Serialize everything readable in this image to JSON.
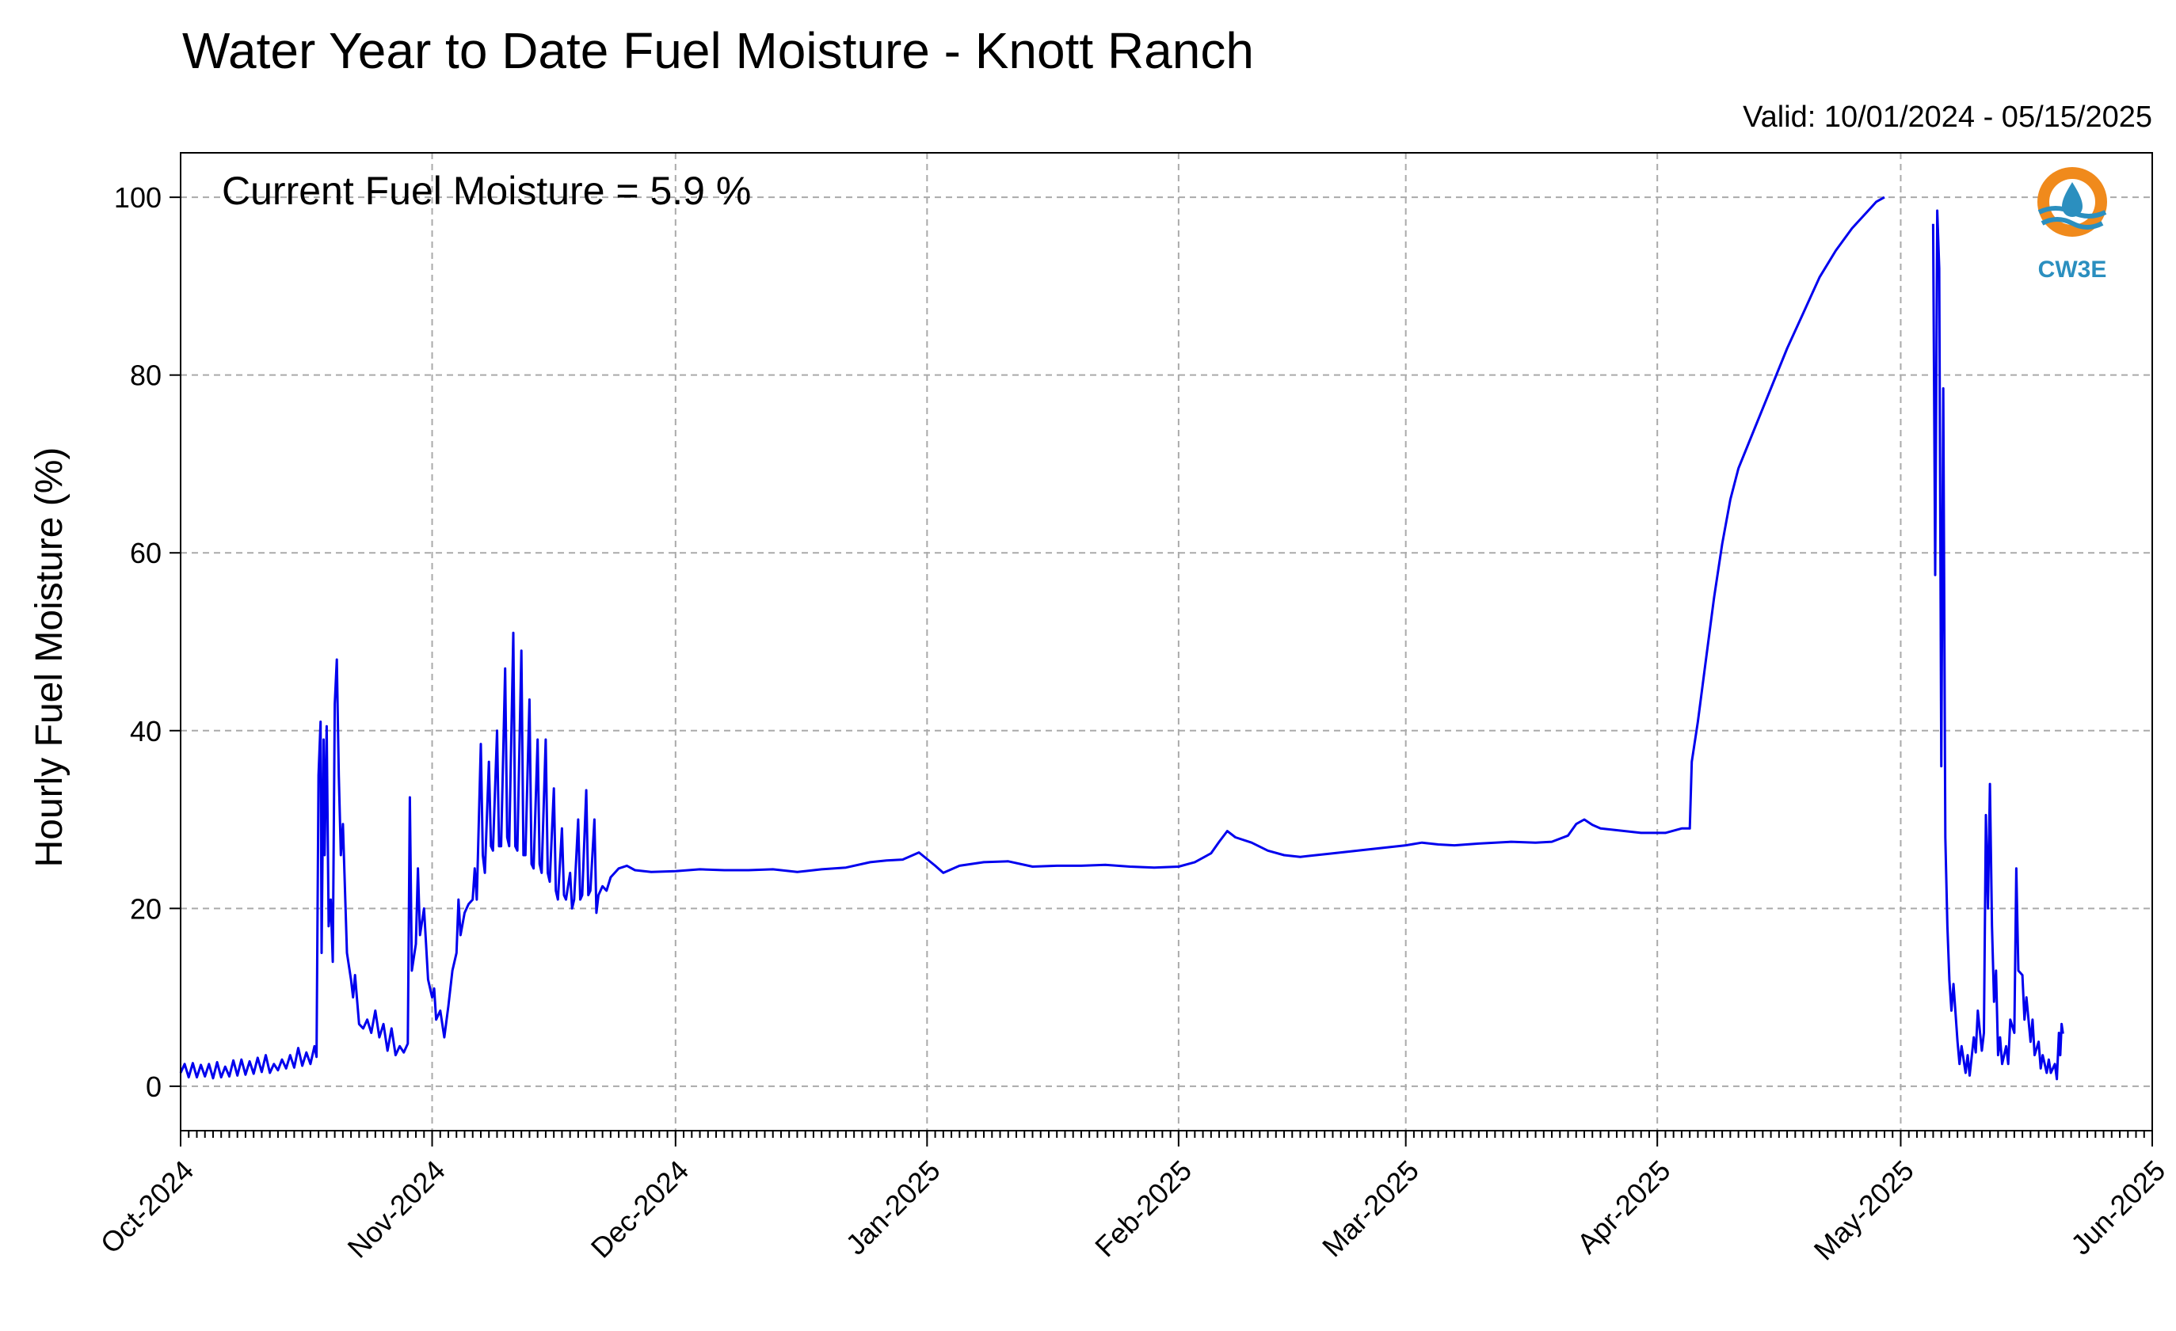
{
  "chart_data": {
    "type": "line",
    "title": "Water Year to Date Fuel Moisture - Knott Ranch",
    "subtitle": "Valid: 10/01/2024 - 05/15/2025",
    "annotation": "Current Fuel Moisture = 5.9 %",
    "xlabel": "",
    "ylabel": "Hourly Fuel Moisture (%)",
    "xlim": [
      "2024-10-01",
      "2025-06-01"
    ],
    "ylim": [
      -5,
      105
    ],
    "grid": true,
    "x_ticks": [
      "Oct-2024",
      "Nov-2024",
      "Dec-2024",
      "Jan-2025",
      "Feb-2025",
      "Mar-2025",
      "Apr-2025",
      "May-2025",
      "Jun-2025"
    ],
    "x_tick_dates": [
      "2024-10-01",
      "2024-11-01",
      "2024-12-01",
      "2025-01-01",
      "2025-02-01",
      "2025-03-01",
      "2025-04-01",
      "2025-05-01",
      "2025-06-01"
    ],
    "y_ticks": [
      0,
      20,
      40,
      60,
      80,
      100
    ],
    "series": [
      {
        "color": "#0000ee",
        "points": [
          [
            "2024-10-01",
            1.5
          ],
          [
            "2024-10-01 12:00",
            2.5
          ],
          [
            "2024-10-02",
            1
          ],
          [
            "2024-10-02 12:00",
            2.6
          ],
          [
            "2024-10-03",
            1
          ],
          [
            "2024-10-03 12:00",
            2.4
          ],
          [
            "2024-10-04",
            1.1
          ],
          [
            "2024-10-04 12:00",
            2.5
          ],
          [
            "2024-10-05",
            0.9
          ],
          [
            "2024-10-05 12:00",
            2.7
          ],
          [
            "2024-10-06",
            1
          ],
          [
            "2024-10-06 12:00",
            2.2
          ],
          [
            "2024-10-07",
            1.1
          ],
          [
            "2024-10-07 12:00",
            2.9
          ],
          [
            "2024-10-08",
            1.2
          ],
          [
            "2024-10-08 12:00",
            3
          ],
          [
            "2024-10-09",
            1.3
          ],
          [
            "2024-10-09 12:00",
            2.8
          ],
          [
            "2024-10-10",
            1.4
          ],
          [
            "2024-10-10 12:00",
            3.2
          ],
          [
            "2024-10-11",
            1.6
          ],
          [
            "2024-10-11 12:00",
            3.5
          ],
          [
            "2024-10-12",
            1.5
          ],
          [
            "2024-10-12 12:00",
            2.5
          ],
          [
            "2024-10-13",
            1.8
          ],
          [
            "2024-10-13 12:00",
            3
          ],
          [
            "2024-10-14",
            2
          ],
          [
            "2024-10-14 12:00",
            3.5
          ],
          [
            "2024-10-15",
            2.1
          ],
          [
            "2024-10-15 12:00",
            4.3
          ],
          [
            "2024-10-16",
            2.3
          ],
          [
            "2024-10-16 12:00",
            3.8
          ],
          [
            "2024-10-17",
            2.5
          ],
          [
            "2024-10-17 12:00",
            4.5
          ],
          [
            "2024-10-17 18:00",
            3.3
          ],
          [
            "2024-10-18",
            35
          ],
          [
            "2024-10-18 06:00",
            41
          ],
          [
            "2024-10-18 09:00",
            15
          ],
          [
            "2024-10-18 15:00",
            39
          ],
          [
            "2024-10-18 18:00",
            26
          ],
          [
            "2024-10-19",
            40.5
          ],
          [
            "2024-10-19 06:00",
            18
          ],
          [
            "2024-10-19 12:00",
            21
          ],
          [
            "2024-10-19 18:00",
            14
          ],
          [
            "2024-10-20",
            43
          ],
          [
            "2024-10-20 06:00",
            48
          ],
          [
            "2024-10-20 12:00",
            35
          ],
          [
            "2024-10-20 18:00",
            26
          ],
          [
            "2024-10-21",
            29.5
          ],
          [
            "2024-10-21 12:00",
            15
          ],
          [
            "2024-10-22",
            12
          ],
          [
            "2024-10-22 06:00",
            10
          ],
          [
            "2024-10-22 12:00",
            12.5
          ],
          [
            "2024-10-23",
            7
          ],
          [
            "2024-10-23 12:00",
            6.5
          ],
          [
            "2024-10-24",
            7.5
          ],
          [
            "2024-10-24 12:00",
            6
          ],
          [
            "2024-10-25",
            8.5
          ],
          [
            "2024-10-25 12:00",
            5.5
          ],
          [
            "2024-10-26",
            7
          ],
          [
            "2024-10-26 12:00",
            4
          ],
          [
            "2024-10-27",
            6.5
          ],
          [
            "2024-10-27 12:00",
            3.5
          ],
          [
            "2024-10-28",
            4.5
          ],
          [
            "2024-10-28 12:00",
            3.8
          ],
          [
            "2024-10-29",
            4.8
          ],
          [
            "2024-10-29 06:00",
            32.5
          ],
          [
            "2024-10-29 12:00",
            13
          ],
          [
            "2024-10-30",
            16
          ],
          [
            "2024-10-30 06:00",
            24.5
          ],
          [
            "2024-10-30 12:00",
            17
          ],
          [
            "2024-10-31",
            20
          ],
          [
            "2024-10-31 12:00",
            12
          ],
          [
            "2024-11-01",
            10
          ],
          [
            "2024-11-01 06:00",
            11
          ],
          [
            "2024-11-01 12:00",
            7.5
          ],
          [
            "2024-11-02",
            8.5
          ],
          [
            "2024-11-02 12:00",
            5.5
          ],
          [
            "2024-11-03",
            9
          ],
          [
            "2024-11-03 12:00",
            13
          ],
          [
            "2024-11-04",
            15
          ],
          [
            "2024-11-04 06:00",
            21
          ],
          [
            "2024-11-04 12:00",
            17
          ],
          [
            "2024-11-05",
            19.5
          ],
          [
            "2024-11-05 12:00",
            20.5
          ],
          [
            "2024-11-06",
            21
          ],
          [
            "2024-11-06 06:00",
            24.5
          ],
          [
            "2024-11-06 12:00",
            21
          ],
          [
            "2024-11-07",
            38.5
          ],
          [
            "2024-11-07 06:00",
            26
          ],
          [
            "2024-11-07 12:00",
            24
          ],
          [
            "2024-11-08",
            36.5
          ],
          [
            "2024-11-08 06:00",
            27
          ],
          [
            "2024-11-08 12:00",
            26.5
          ],
          [
            "2024-11-09",
            40
          ],
          [
            "2024-11-09 06:00",
            27
          ],
          [
            "2024-11-09 12:00",
            27
          ],
          [
            "2024-11-10",
            47
          ],
          [
            "2024-11-10 06:00",
            28
          ],
          [
            "2024-11-10 12:00",
            27
          ],
          [
            "2024-11-11",
            51
          ],
          [
            "2024-11-11 06:00",
            27
          ],
          [
            "2024-11-11 12:00",
            26.5
          ],
          [
            "2024-11-12",
            49
          ],
          [
            "2024-11-12 06:00",
            26
          ],
          [
            "2024-11-12 12:00",
            26
          ],
          [
            "2024-11-13",
            43.5
          ],
          [
            "2024-11-13 06:00",
            25
          ],
          [
            "2024-11-13 12:00",
            24.5
          ],
          [
            "2024-11-14",
            39
          ],
          [
            "2024-11-14 06:00",
            25
          ],
          [
            "2024-11-14 12:00",
            24
          ],
          [
            "2024-11-15",
            39
          ],
          [
            "2024-11-15 06:00",
            24
          ],
          [
            "2024-11-15 12:00",
            23
          ],
          [
            "2024-11-16",
            33.5
          ],
          [
            "2024-11-16 06:00",
            22
          ],
          [
            "2024-11-16 12:00",
            21
          ],
          [
            "2024-11-17",
            29
          ],
          [
            "2024-11-17 06:00",
            21.5
          ],
          [
            "2024-11-17 12:00",
            21
          ],
          [
            "2024-11-18",
            24
          ],
          [
            "2024-11-18 06:00",
            20
          ],
          [
            "2024-11-18 12:00",
            21
          ],
          [
            "2024-11-19",
            30
          ],
          [
            "2024-11-19 06:00",
            21
          ],
          [
            "2024-11-19 12:00",
            21.5
          ],
          [
            "2024-11-20",
            33.3
          ],
          [
            "2024-11-20 06:00",
            21.5
          ],
          [
            "2024-11-20 12:00",
            22
          ],
          [
            "2024-11-21",
            30
          ],
          [
            "2024-11-21 06:00",
            19.5
          ],
          [
            "2024-11-21 12:00",
            21.5
          ],
          [
            "2024-11-22",
            22.5
          ],
          [
            "2024-11-22 12:00",
            22
          ],
          [
            "2024-11-23",
            23.5
          ],
          [
            "2024-11-24",
            24.5
          ],
          [
            "2024-11-25",
            24.8
          ],
          [
            "2024-11-26",
            24.3
          ],
          [
            "2024-11-28",
            24.1
          ],
          [
            "2024-12-01",
            24.2
          ],
          [
            "2024-12-04",
            24.4
          ],
          [
            "2024-12-07",
            24.3
          ],
          [
            "2024-12-10",
            24.3
          ],
          [
            "2024-12-13",
            24.4
          ],
          [
            "2024-12-16",
            24.1
          ],
          [
            "2024-12-19",
            24.4
          ],
          [
            "2024-12-22",
            24.6
          ],
          [
            "2024-12-25",
            25.2
          ],
          [
            "2024-12-27",
            25.4
          ],
          [
            "2024-12-29",
            25.5
          ],
          [
            "2024-12-31",
            26.3
          ],
          [
            "2025-01-02",
            24.8
          ],
          [
            "2025-01-03",
            24
          ],
          [
            "2025-01-05",
            24.8
          ],
          [
            "2025-01-08",
            25.2
          ],
          [
            "2025-01-11",
            25.3
          ],
          [
            "2025-01-14",
            24.7
          ],
          [
            "2025-01-17",
            24.8
          ],
          [
            "2025-01-20",
            24.8
          ],
          [
            "2025-01-23",
            24.9
          ],
          [
            "2025-01-26",
            24.7
          ],
          [
            "2025-01-29",
            24.6
          ],
          [
            "2025-02-01",
            24.7
          ],
          [
            "2025-02-03",
            25.2
          ],
          [
            "2025-02-05",
            26.2
          ],
          [
            "2025-02-06",
            27.5
          ],
          [
            "2025-02-07",
            28.7
          ],
          [
            "2025-02-08",
            28
          ],
          [
            "2025-02-10",
            27.4
          ],
          [
            "2025-02-12",
            26.5
          ],
          [
            "2025-02-14",
            26
          ],
          [
            "2025-02-16",
            25.8
          ],
          [
            "2025-02-20",
            26.2
          ],
          [
            "2025-02-24",
            26.6
          ],
          [
            "2025-03-01",
            27.1
          ],
          [
            "2025-03-03",
            27.4
          ],
          [
            "2025-03-05",
            27.2
          ],
          [
            "2025-03-07",
            27.1
          ],
          [
            "2025-03-10",
            27.3
          ],
          [
            "2025-03-14",
            27.5
          ],
          [
            "2025-03-17",
            27.4
          ],
          [
            "2025-03-19",
            27.5
          ],
          [
            "2025-03-21",
            28.2
          ],
          [
            "2025-03-22",
            29.5
          ],
          [
            "2025-03-23",
            30
          ],
          [
            "2025-03-24",
            29.4
          ],
          [
            "2025-03-25",
            29
          ],
          [
            "2025-03-27",
            28.8
          ],
          [
            "2025-03-30",
            28.5
          ],
          [
            "2025-04-02",
            28.5
          ],
          [
            "2025-04-04",
            29
          ],
          [
            "2025-04-05",
            29
          ],
          [
            "2025-04-05 06:00",
            36.5
          ],
          [
            "2025-04-06",
            41
          ],
          [
            "2025-04-07",
            48
          ],
          [
            "2025-04-08",
            55
          ],
          [
            "2025-04-09",
            61
          ],
          [
            "2025-04-10",
            66
          ],
          [
            "2025-04-11",
            69.5
          ],
          [
            "2025-04-13",
            74
          ],
          [
            "2025-04-15",
            78.5
          ],
          [
            "2025-04-17",
            83
          ],
          [
            "2025-04-19",
            87
          ],
          [
            "2025-04-21",
            91
          ],
          [
            "2025-04-23",
            94
          ],
          [
            "2025-04-25",
            96.5
          ],
          [
            "2025-04-27",
            98.5
          ],
          [
            "2025-04-28",
            99.5
          ],
          [
            "2025-04-29",
            100
          ]
        ]
      },
      {
        "color": "#0000ee",
        "points": [
          [
            "2025-05-05",
            97
          ],
          [
            "2025-05-05 06:00",
            57.5
          ],
          [
            "2025-05-05 12:00",
            98.5
          ],
          [
            "2025-05-05 18:00",
            92
          ],
          [
            "2025-05-06",
            36
          ],
          [
            "2025-05-06 06:00",
            78.5
          ],
          [
            "2025-05-06 12:00",
            28
          ],
          [
            "2025-05-06 18:00",
            18
          ],
          [
            "2025-05-07",
            12
          ],
          [
            "2025-05-07 06:00",
            8.5
          ],
          [
            "2025-05-07 12:00",
            11.5
          ],
          [
            "2025-05-08",
            5
          ],
          [
            "2025-05-08 06:00",
            2.5
          ],
          [
            "2025-05-08 12:00",
            4.5
          ],
          [
            "2025-05-09",
            1.5
          ],
          [
            "2025-05-09 06:00",
            3.5
          ],
          [
            "2025-05-09 12:00",
            1.2
          ],
          [
            "2025-05-10",
            5.5
          ],
          [
            "2025-05-10 06:00",
            3.8
          ],
          [
            "2025-05-10 12:00",
            8.5
          ],
          [
            "2025-05-11",
            4
          ],
          [
            "2025-05-11 06:00",
            6
          ],
          [
            "2025-05-11 12:00",
            30.5
          ],
          [
            "2025-05-11 18:00",
            20
          ],
          [
            "2025-05-12",
            34
          ],
          [
            "2025-05-12 06:00",
            18
          ],
          [
            "2025-05-12 12:00",
            9.5
          ],
          [
            "2025-05-12 18:00",
            13
          ],
          [
            "2025-05-13",
            3.5
          ],
          [
            "2025-05-13 06:00",
            5.5
          ],
          [
            "2025-05-13 12:00",
            2.5
          ],
          [
            "2025-05-14",
            4.5
          ],
          [
            "2025-05-14 06:00",
            2.5
          ],
          [
            "2025-05-14 12:00",
            7.5
          ],
          [
            "2025-05-15",
            6
          ],
          [
            "2025-05-15 06:00",
            24.5
          ],
          [
            "2025-05-15 12:00",
            13
          ],
          [
            "2025-05-16",
            12.5
          ],
          [
            "2025-05-16 06:00",
            7.5
          ],
          [
            "2025-05-16 12:00",
            10
          ],
          [
            "2025-05-17",
            5
          ],
          [
            "2025-05-17 06:00",
            7.5
          ],
          [
            "2025-05-17 12:00",
            3.5
          ],
          [
            "2025-05-18",
            5
          ],
          [
            "2025-05-18 06:00",
            2
          ],
          [
            "2025-05-18 12:00",
            3.5
          ],
          [
            "2025-05-19",
            1.5
          ],
          [
            "2025-05-19 06:00",
            3
          ],
          [
            "2025-05-19 12:00",
            1.5
          ],
          [
            "2025-05-20",
            2.5
          ],
          [
            "2025-05-20 06:00",
            0.8
          ],
          [
            "2025-05-20 12:00",
            6
          ],
          [
            "2025-05-20 16:00",
            3.5
          ],
          [
            "2025-05-20 20:00",
            7
          ],
          [
            "2025-05-21",
            5.9
          ]
        ]
      }
    ]
  },
  "logo": {
    "text": "CW3E",
    "ring_color": "#f08a1c",
    "accent_color": "#2b8fbf"
  }
}
